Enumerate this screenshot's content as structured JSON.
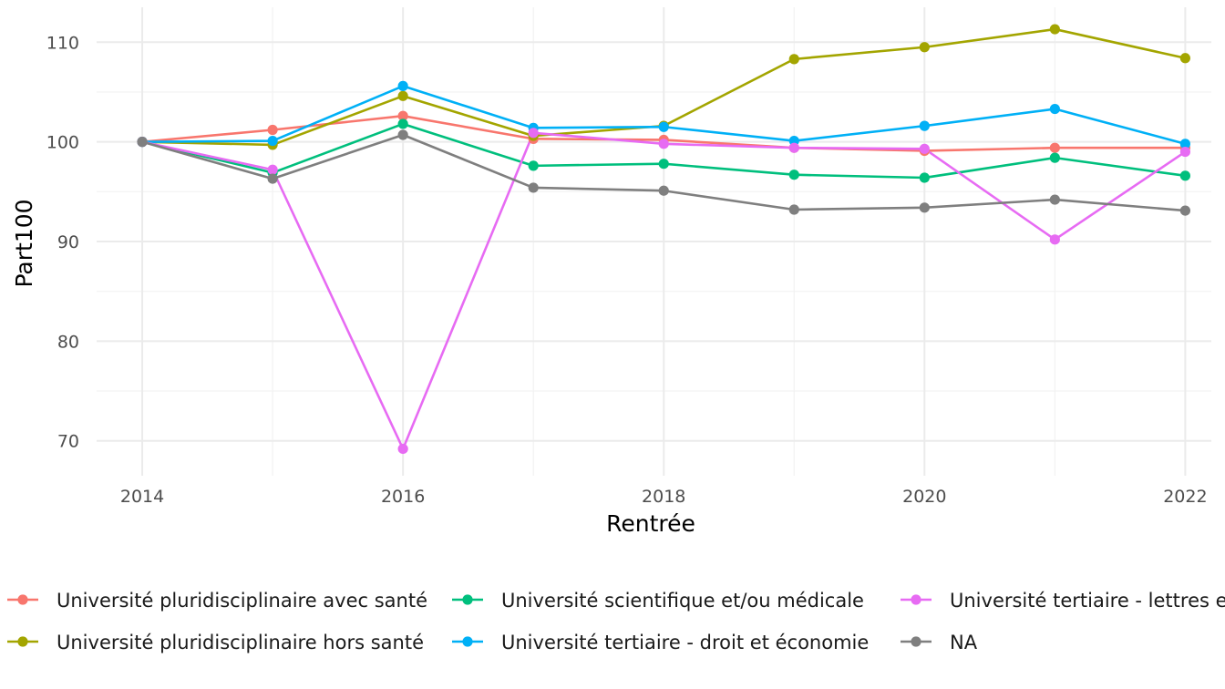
{
  "chart_data": {
    "type": "line",
    "xlabel": "Rentrée",
    "ylabel": "Part100",
    "x": [
      2014,
      2015,
      2016,
      2017,
      2018,
      2019,
      2020,
      2021,
      2022
    ],
    "xlim": [
      2013.65,
      2022.2
    ],
    "ylim": [
      66.5,
      113.5
    ],
    "x_ticks": [
      2014,
      2016,
      2018,
      2020,
      2022
    ],
    "y_ticks": [
      70,
      80,
      90,
      100,
      110
    ],
    "grid": true,
    "legend_position": "bottom",
    "series": [
      {
        "name": "Université pluridisciplinaire avec santé",
        "color": "#F8766D",
        "values": [
          100,
          101.2,
          102.6,
          100.3,
          100.2,
          99.4,
          99.1,
          99.4,
          99.4
        ]
      },
      {
        "name": "Université pluridisciplinaire hors santé",
        "color": "#A3A500",
        "values": [
          100,
          99.7,
          104.6,
          100.6,
          101.6,
          108.3,
          109.5,
          111.3,
          108.4
        ]
      },
      {
        "name": "Université scientifique et/ou médicale",
        "color": "#00BF7D",
        "values": [
          100,
          96.9,
          101.8,
          97.6,
          97.8,
          96.7,
          96.4,
          98.4,
          96.6
        ]
      },
      {
        "name": "Université tertiaire - droit et économie",
        "color": "#00B0F6",
        "values": [
          100,
          100.1,
          105.6,
          101.4,
          101.5,
          100.1,
          101.6,
          103.3,
          99.8
        ]
      },
      {
        "name": "Université tertiaire - lettres et sciences humaines",
        "color": "#E76BF3",
        "values": [
          100,
          97.2,
          69.2,
          100.9,
          99.8,
          99.4,
          99.3,
          90.2,
          99.0
        ]
      },
      {
        "name": "NA",
        "color": "#7F7F7F",
        "values": [
          100,
          96.3,
          100.7,
          95.4,
          95.1,
          93.2,
          93.4,
          94.2,
          93.1
        ]
      }
    ]
  }
}
